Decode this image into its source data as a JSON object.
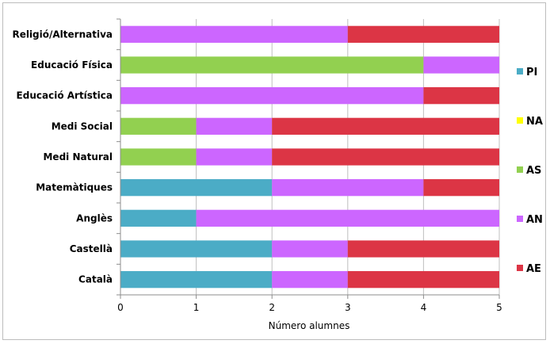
{
  "chart_data": {
    "type": "bar",
    "orientation": "horizontal",
    "stacked": true,
    "categories": [
      "Religió/Alternativa",
      "Educació Física",
      "Educació Artística",
      "Medi Social",
      "Medi Natural",
      "Matemàtiques",
      "Anglès",
      "Castellà",
      "Català"
    ],
    "series": [
      {
        "name": "PI",
        "color": "#4bacc6",
        "values": [
          0,
          0,
          0,
          0,
          0,
          2,
          1,
          2,
          2
        ]
      },
      {
        "name": "NA",
        "color": "#ffff00",
        "values": [
          0,
          0,
          0,
          0,
          0,
          0,
          0,
          0,
          0
        ]
      },
      {
        "name": "AS",
        "color": "#92d050",
        "values": [
          0,
          4,
          0,
          1,
          1,
          0,
          0,
          0,
          0
        ]
      },
      {
        "name": "AN",
        "color": "#cc66ff",
        "values": [
          3,
          1,
          4,
          1,
          1,
          2,
          4,
          1,
          1
        ]
      },
      {
        "name": "AE",
        "color": "#dc3545",
        "values": [
          2,
          0,
          1,
          3,
          3,
          1,
          0,
          2,
          2
        ]
      }
    ],
    "xlabel": "Número alumnes",
    "xlim": [
      0,
      5
    ],
    "xticks": [
      "0",
      "1",
      "2",
      "3",
      "4",
      "5"
    ],
    "grid": "vertical",
    "legend_position": "right"
  }
}
